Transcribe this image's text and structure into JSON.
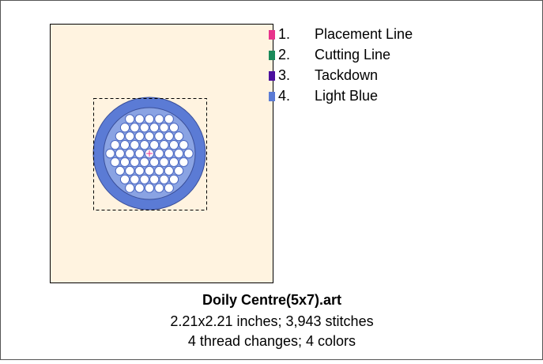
{
  "design": {
    "colors": [
      {
        "number": "1.",
        "name": "Placement Line",
        "color": "#e8338c"
      },
      {
        "number": "2.",
        "name": "Cutting Line",
        "color": "#1a8a5a"
      },
      {
        "number": "3.",
        "name": "Tackdown",
        "color": "#4b0f9e"
      },
      {
        "number": "4.",
        "name": "Light Blue",
        "color": "#5b7bd5"
      }
    ],
    "title": "Doily Centre(5x7).art",
    "size_line": "2.21x2.21 inches; 3,943 stitches",
    "thread_line": "4 thread changes; 4 colors"
  }
}
